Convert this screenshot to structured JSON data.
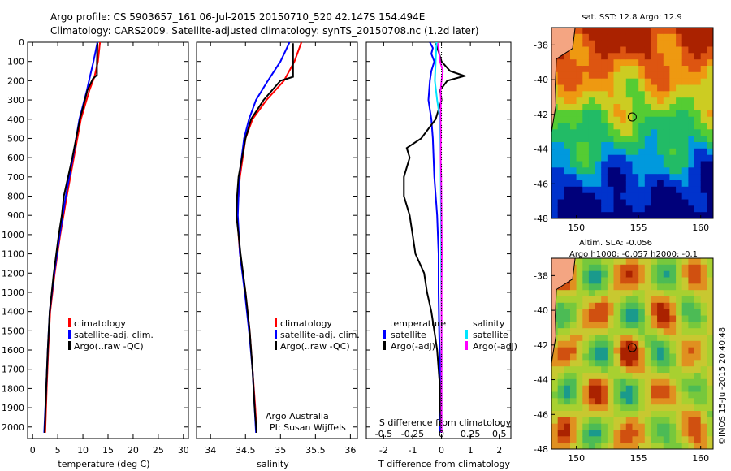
{
  "header": {
    "title_line1": "Argo profile: CS 5903657_161 06-Jul-2015 20150710_520 42.147S 154.494E",
    "title_line2": "Climatology: CARS2009. Satellite-adjusted climatology: synTS_20150708.nc (1.2d later)"
  },
  "colors": {
    "climatology": "#ff0000",
    "satellite_adj": "#0000ff",
    "argo": "#000000",
    "satellite_s": "#00e5ff",
    "argo_s": "#ff00ff",
    "land": "#f4a582"
  },
  "chart_data": [
    {
      "type": "line",
      "panel": "temperature",
      "xlabel": "temperature (deg C)",
      "ylabel": "",
      "xlim": [
        -1,
        31
      ],
      "ylim": [
        2060,
        0
      ],
      "xticks": [
        0,
        5,
        10,
        15,
        20,
        25,
        30
      ],
      "yticks": [
        0,
        100,
        200,
        300,
        400,
        500,
        600,
        700,
        800,
        900,
        1000,
        1100,
        1200,
        1300,
        1400,
        1500,
        1600,
        1700,
        1800,
        1900,
        2000
      ],
      "legend": [
        "climatology",
        "satellite-adj. clim.",
        "Argo(..raw -QC)"
      ],
      "series": [
        {
          "name": "climatology",
          "color": "#ff0000",
          "depth": [
            0,
            100,
            180,
            250,
            400,
            600,
            800,
            1000,
            1200,
            1400,
            1600,
            1800,
            2030
          ],
          "values": [
            13.4,
            13.0,
            12.3,
            11.3,
            9.6,
            8.2,
            6.8,
            5.5,
            4.4,
            3.5,
            3.1,
            2.8,
            2.5
          ]
        },
        {
          "name": "satellite-adj. clim.",
          "color": "#0000ff",
          "depth": [
            0,
            100,
            180,
            250,
            400,
            600,
            800,
            1000,
            1200,
            1400,
            1600,
            1800,
            2030
          ],
          "values": [
            12.9,
            12.1,
            11.4,
            10.8,
            9.3,
            8.0,
            6.6,
            5.4,
            4.3,
            3.4,
            3.0,
            2.7,
            2.3
          ]
        },
        {
          "name": "Argo(..raw -QC)",
          "color": "#000000",
          "depth": [
            5,
            100,
            170,
            190,
            250,
            400,
            600,
            800,
            900,
            1000,
            1200,
            1400,
            1600,
            1800,
            2030
          ],
          "values": [
            12.9,
            12.8,
            12.8,
            12.0,
            10.9,
            9.4,
            7.9,
            6.2,
            5.8,
            5.2,
            4.2,
            3.4,
            3.0,
            2.7,
            2.4
          ]
        }
      ]
    },
    {
      "type": "line",
      "panel": "salinity",
      "xlabel": "salinity",
      "ylabel": "",
      "xlim": [
        33.8,
        36.1
      ],
      "ylim": [
        2060,
        0
      ],
      "xticks": [
        34,
        34.5,
        35,
        35.5,
        36
      ],
      "legend": [
        "climatology",
        "satellite-adj. clim.",
        "Argo(..raw -QC)"
      ],
      "annotation": [
        "Argo Australia",
        "PI: Susan Wijffels"
      ],
      "series": [
        {
          "name": "climatology",
          "color": "#ff0000",
          "depth": [
            0,
            100,
            200,
            300,
            400,
            500,
            700,
            900,
            1100,
            1300,
            1500,
            1700,
            1900,
            2030
          ],
          "values": [
            35.3,
            35.2,
            35.05,
            34.8,
            34.6,
            34.5,
            34.42,
            34.38,
            34.42,
            34.5,
            34.56,
            34.6,
            34.64,
            34.66
          ]
        },
        {
          "name": "satellite-adj. clim.",
          "color": "#0000ff",
          "depth": [
            0,
            100,
            200,
            300,
            400,
            500,
            700,
            900,
            1100,
            1300,
            1500,
            1700,
            1900,
            2030
          ],
          "values": [
            35.13,
            35.0,
            34.82,
            34.65,
            34.55,
            34.48,
            34.41,
            34.39,
            34.42,
            34.49,
            34.55,
            34.6,
            34.63,
            34.65
          ]
        },
        {
          "name": "Argo(..raw -QC)",
          "color": "#000000",
          "depth": [
            5,
            100,
            180,
            200,
            300,
            400,
            500,
            700,
            800,
            900,
            1000,
            1100,
            1300,
            1500,
            1700,
            1900,
            2030
          ],
          "values": [
            35.18,
            35.18,
            35.18,
            35.0,
            34.76,
            34.58,
            34.5,
            34.4,
            34.38,
            34.37,
            34.4,
            34.43,
            34.5,
            34.56,
            34.6,
            34.63,
            34.66
          ]
        }
      ]
    },
    {
      "type": "line",
      "panel": "differences",
      "xlabel": "T difference from climatology",
      "xlabel_top": "S difference from climatology",
      "xlim": [
        -2.6,
        2.4
      ],
      "ylim": [
        2060,
        0
      ],
      "xticks": [
        -2,
        -1,
        0,
        1,
        2
      ],
      "s_ticks": [
        -0.5,
        -0.25,
        0,
        0.25,
        0.5
      ],
      "s_tick_labels": [
        "-0.5",
        "-0.25",
        "0",
        "0.25",
        "0.5"
      ],
      "legend_headers": [
        "temperature",
        "salinity"
      ],
      "legend_left": [
        "satellite",
        "Argo(-adj)"
      ],
      "legend_right": [
        "satellite",
        "Argo(-adj)"
      ],
      "series": [
        {
          "name": "satellite",
          "quantity": "temperature",
          "color": "#0000ff",
          "depth": [
            0,
            30,
            60,
            100,
            150,
            200,
            300,
            400,
            500,
            700,
            900,
            1100,
            1300,
            1500,
            1700,
            2030
          ],
          "values": [
            -0.4,
            -0.3,
            -0.35,
            -0.25,
            -0.35,
            -0.4,
            -0.45,
            -0.35,
            -0.3,
            -0.25,
            -0.15,
            -0.1,
            -0.1,
            -0.08,
            -0.05,
            -0.05
          ]
        },
        {
          "name": "Argo(-adj)",
          "quantity": "temperature",
          "color": "#000000",
          "depth": [
            5,
            50,
            100,
            150,
            175,
            200,
            250,
            300,
            400,
            500,
            550,
            600,
            700,
            800,
            900,
            1000,
            1100,
            1200,
            1300,
            1400,
            1500,
            1600,
            1700,
            1800,
            1900,
            2030
          ],
          "values": [
            -0.2,
            -0.1,
            0.0,
            0.3,
            0.8,
            0.2,
            -0.05,
            0.0,
            -0.2,
            -0.7,
            -1.2,
            -1.1,
            -1.3,
            -1.3,
            -1.1,
            -1.0,
            -0.9,
            -0.6,
            -0.5,
            -0.35,
            -0.25,
            -0.15,
            -0.1,
            -0.05,
            -0.05,
            0.0
          ]
        },
        {
          "name": "satellite",
          "quantity": "salinity",
          "color": "#00e5ff",
          "depth": [
            0,
            100,
            200,
            300,
            400,
            600,
            800,
            1000,
            1200,
            1500,
            1800,
            2030
          ],
          "values": [
            -0.17,
            -0.2,
            -0.23,
            -0.15,
            -0.05,
            -0.03,
            -0.02,
            -0.01,
            -0.01,
            0.0,
            0.0,
            0.0
          ]
        },
        {
          "name": "Argo(-adj)",
          "quantity": "salinity",
          "color": "#ff00ff",
          "depth": [
            5,
            100,
            150,
            200,
            250,
            300,
            400,
            500,
            600,
            700,
            900,
            1100,
            1300,
            1500,
            1700,
            1900,
            2030
          ],
          "values": [
            -0.12,
            -0.05,
            0.05,
            0.0,
            -0.03,
            -0.02,
            -0.03,
            -0.02,
            -0.03,
            -0.01,
            0.0,
            0.01,
            0.0,
            0.0,
            0.0,
            0.0,
            0.0
          ]
        }
      ]
    },
    {
      "type": "heatmap",
      "panel": "sst_map",
      "title": "sat. SST: 12.8  Argo: 12.9",
      "xlim": [
        148,
        161
      ],
      "ylim": [
        -48,
        -37
      ],
      "xticks": [
        150,
        155,
        160
      ],
      "yticks": [
        -38,
        -40,
        -42,
        -44,
        -46,
        -48
      ],
      "float_position": [
        154.494,
        -42.147
      ]
    },
    {
      "type": "heatmap",
      "panel": "sla_map",
      "title_line1": "Altim. SLA: -0.056",
      "title_line2": "Argo h1000: -0.057 h2000: -0.1",
      "xlim": [
        148,
        161
      ],
      "ylim": [
        -48,
        -37
      ],
      "xticks": [
        150,
        155,
        160
      ],
      "yticks": [
        -38,
        -40,
        -42,
        -44,
        -46,
        -48
      ],
      "float_position": [
        154.494,
        -42.147
      ]
    }
  ],
  "footer": {
    "credit": "©IMOS 15-Jul-2015 20:40:48"
  }
}
